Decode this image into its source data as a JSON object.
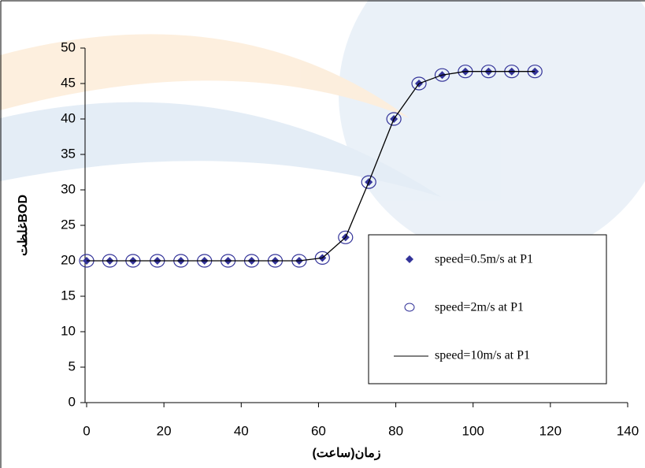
{
  "chart_data": {
    "type": "scatter",
    "x_label": "زمان(ساعت)",
    "y_label": "غلظتBOD",
    "x": [
      0,
      6,
      12,
      18.3,
      24.4,
      30.5,
      36.6,
      42.7,
      48.8,
      55,
      61,
      67,
      73,
      79.5,
      86,
      92,
      98,
      104,
      110,
      116
    ],
    "series": [
      {
        "name": "speed=0.5m/s at P1",
        "color": "#333399",
        "marker": "diamond",
        "values": [
          20,
          20,
          20,
          20,
          20,
          20,
          20,
          20,
          20,
          20,
          20.4,
          23.3,
          31.1,
          40,
          45,
          46.2,
          46.7,
          46.7,
          46.7,
          46.7
        ]
      },
      {
        "name": "speed=2m/s at P1",
        "color": "#333399",
        "marker": "circle",
        "values": [
          20,
          20,
          20,
          20,
          20,
          20,
          20,
          20,
          20,
          20,
          20.4,
          23.3,
          31.1,
          40,
          45,
          46.2,
          46.7,
          46.7,
          46.7,
          46.7
        ]
      },
      {
        "name": "speed=10m/s at P1",
        "color": "#000000",
        "marker": "line",
        "values": [
          20,
          20,
          20,
          20,
          20,
          20,
          20,
          20,
          20,
          20,
          20.4,
          23.3,
          31.1,
          40,
          45,
          46.2,
          46.7,
          46.7,
          46.7,
          46.7
        ]
      }
    ],
    "xlim": [
      0,
      140
    ],
    "xticks": [
      0,
      20,
      40,
      60,
      80,
      100,
      120,
      140
    ],
    "ylim": [
      0,
      50
    ],
    "yticks": [
      0,
      5,
      10,
      15,
      20,
      25,
      30,
      35,
      40,
      45,
      50
    ]
  }
}
